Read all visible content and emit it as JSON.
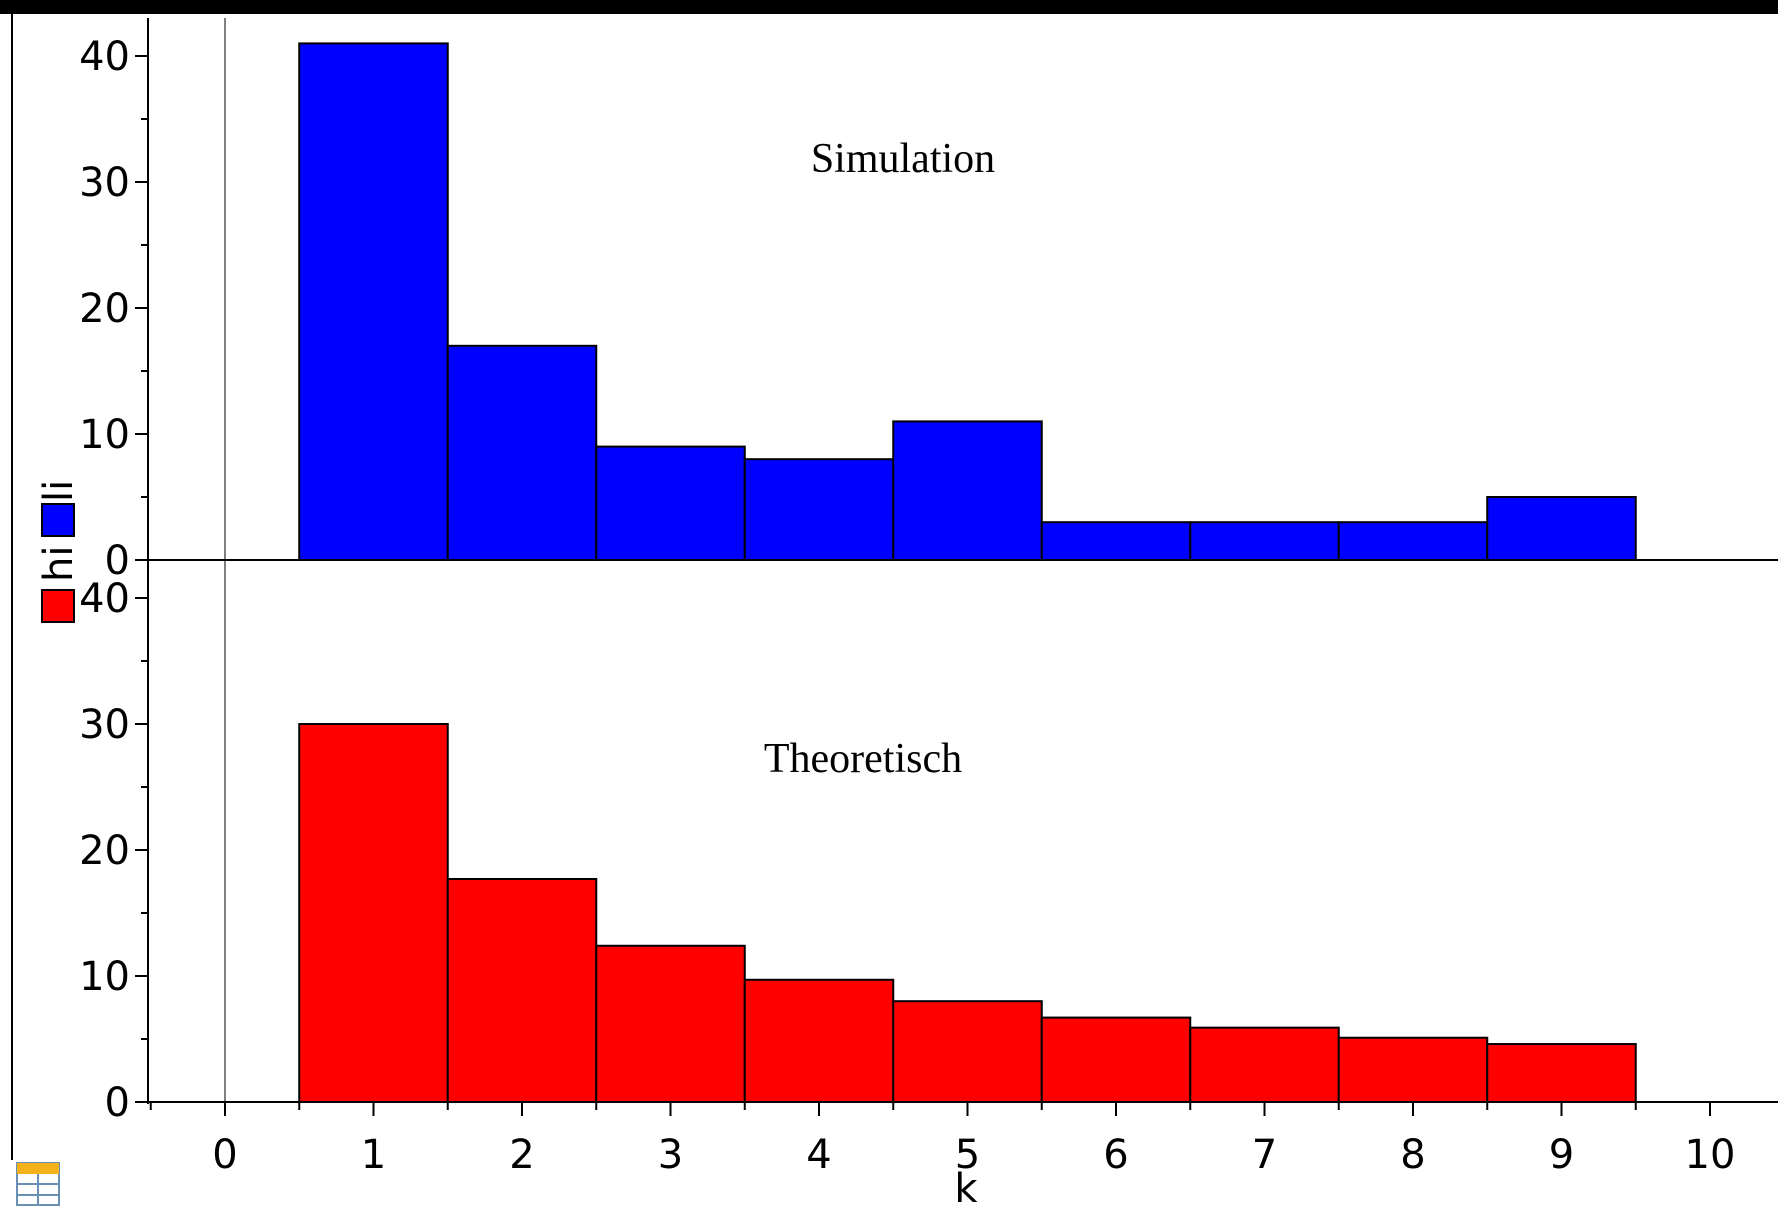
{
  "chart_data": [
    {
      "type": "bar",
      "panel": "top",
      "annotation": "Simulation",
      "ylabel": "li",
      "color": "#0000ff",
      "bin_width": 1,
      "x": [
        1,
        2,
        3,
        4,
        5,
        6,
        7,
        8,
        9
      ],
      "values": [
        41,
        17,
        9,
        8,
        11,
        3,
        3,
        3,
        5
      ],
      "ylim": [
        0,
        43
      ],
      "yticks": [
        "0",
        "10",
        "20",
        "30",
        "40"
      ]
    },
    {
      "type": "bar",
      "panel": "bottom",
      "annotation": "Theoretisch",
      "ylabel": "hi",
      "color": "#ff0000",
      "bin_width": 1,
      "x": [
        1,
        2,
        3,
        4,
        5,
        6,
        7,
        8,
        9
      ],
      "values": [
        30,
        17.7,
        12.4,
        9.7,
        8,
        6.7,
        5.9,
        5.1,
        4.6
      ],
      "ylim": [
        0,
        40
      ],
      "yticks": [
        "0",
        "10",
        "20",
        "30",
        "40"
      ]
    }
  ],
  "xaxis": {
    "label": "k",
    "xlim": [
      -0.5,
      10.5
    ],
    "ticks": [
      "0",
      "1",
      "2",
      "3",
      "4",
      "5",
      "6",
      "7",
      "8",
      "9",
      "10"
    ]
  },
  "frame_color": "#000000",
  "zero_line_color": "#808080",
  "icons": [
    "table-icon"
  ]
}
